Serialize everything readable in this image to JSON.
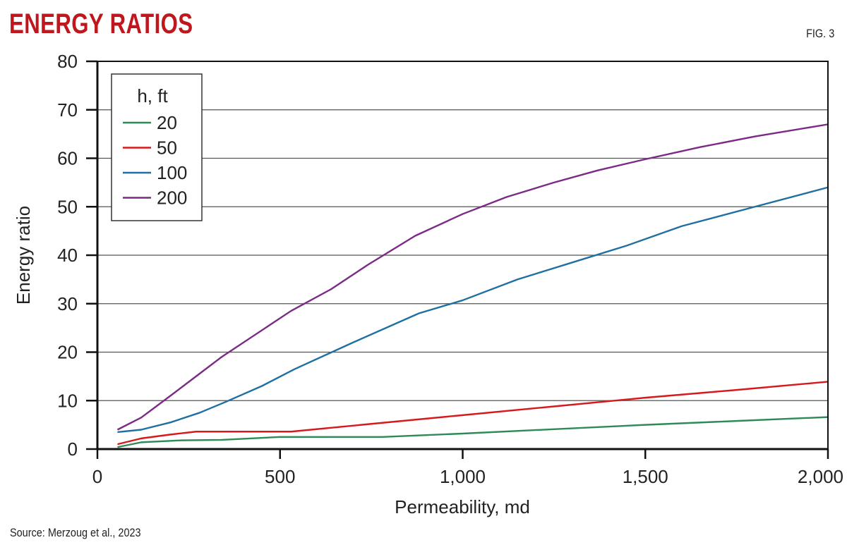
{
  "chart_data": {
    "type": "line",
    "title": "ENERGY RATIOS",
    "figure_label": "FIG. 3",
    "source": "Source: Merzoug et al., 2023",
    "xlabel": "Permeability, md",
    "ylabel": "Energy ratio",
    "xlim": [
      0,
      2000
    ],
    "ylim": [
      0,
      80
    ],
    "xticks": [
      0,
      500,
      1000,
      1500,
      2000
    ],
    "xtick_labels": [
      "0",
      "500",
      "1,000",
      "1,500",
      "2,000"
    ],
    "yticks": [
      0,
      10,
      20,
      30,
      40,
      50,
      60,
      70,
      80
    ],
    "ytick_labels": [
      "0",
      "10",
      "20",
      "30",
      "40",
      "50",
      "60",
      "70",
      "80"
    ],
    "grid": "horizontal",
    "legend_title": "h, ft",
    "legend_placement": "top-left",
    "series": [
      {
        "name": "20",
        "color": "#2e8b57",
        "x": [
          55,
          120,
          230,
          340,
          500,
          780,
          1000,
          1250,
          1500,
          1750,
          2000
        ],
        "y": [
          0.4,
          1.4,
          1.8,
          1.9,
          2.5,
          2.5,
          3.2,
          4.1,
          5.0,
          5.8,
          6.6
        ]
      },
      {
        "name": "50",
        "color": "#d7191c",
        "x": [
          55,
          120,
          200,
          270,
          530,
          750,
          1000,
          1250,
          1500,
          1750,
          2000
        ],
        "y": [
          1.0,
          2.2,
          3.0,
          3.6,
          3.6,
          5.2,
          7.0,
          8.8,
          10.6,
          12.2,
          13.9
        ]
      },
      {
        "name": "100",
        "color": "#1f6fa3",
        "x": [
          55,
          120,
          200,
          280,
          350,
          450,
          540,
          700,
          880,
          1000,
          1150,
          1300,
          1450,
          1600,
          1800,
          2000
        ],
        "y": [
          3.5,
          4.0,
          5.5,
          7.5,
          9.7,
          13,
          16.5,
          22,
          28,
          30.7,
          35,
          38.5,
          42,
          46,
          50,
          54
        ]
      },
      {
        "name": "200",
        "color": "#7b2a86",
        "x": [
          55,
          120,
          200,
          270,
          340,
          430,
          530,
          640,
          740,
          870,
          1000,
          1120,
          1250,
          1370,
          1500,
          1650,
          1800,
          2000
        ],
        "y": [
          4.0,
          6.5,
          11,
          15,
          19,
          23.5,
          28.5,
          33,
          38,
          44,
          48.5,
          52,
          55,
          57.5,
          59.8,
          62.3,
          64.5,
          67
        ]
      }
    ]
  }
}
